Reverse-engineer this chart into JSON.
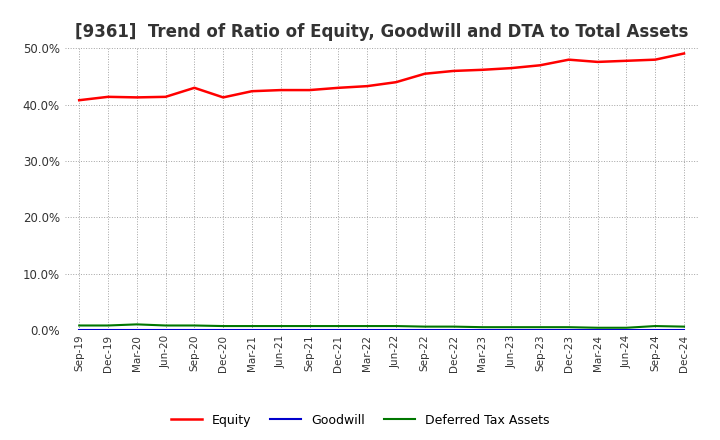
{
  "title": "[9361]  Trend of Ratio of Equity, Goodwill and DTA to Total Assets",
  "x_labels": [
    "Sep-19",
    "Dec-19",
    "Mar-20",
    "Jun-20",
    "Sep-20",
    "Dec-20",
    "Mar-21",
    "Jun-21",
    "Sep-21",
    "Dec-21",
    "Mar-22",
    "Jun-22",
    "Sep-22",
    "Dec-22",
    "Mar-23",
    "Jun-23",
    "Sep-23",
    "Dec-23",
    "Mar-24",
    "Jun-24",
    "Sep-24",
    "Dec-24"
  ],
  "equity": [
    0.408,
    0.414,
    0.413,
    0.414,
    0.43,
    0.413,
    0.424,
    0.426,
    0.426,
    0.43,
    0.433,
    0.44,
    0.455,
    0.46,
    0.462,
    0.465,
    0.47,
    0.48,
    0.476,
    0.478,
    0.48,
    0.491
  ],
  "goodwill": [
    0.0,
    0.0,
    0.0,
    0.0,
    0.0,
    0.0,
    0.0,
    0.0,
    0.0,
    0.0,
    0.0,
    0.0,
    0.0,
    0.0,
    0.0,
    0.0,
    0.0,
    0.0,
    0.0,
    0.0,
    0.0,
    0.0
  ],
  "dta": [
    0.008,
    0.008,
    0.01,
    0.008,
    0.008,
    0.007,
    0.007,
    0.007,
    0.007,
    0.007,
    0.007,
    0.007,
    0.006,
    0.006,
    0.005,
    0.005,
    0.005,
    0.005,
    0.004,
    0.004,
    0.007,
    0.006
  ],
  "equity_color": "#ff0000",
  "goodwill_color": "#0000cc",
  "dta_color": "#007700",
  "ylim": [
    0.0,
    0.5
  ],
  "yticks": [
    0.0,
    0.1,
    0.2,
    0.3,
    0.4,
    0.5
  ],
  "background_color": "#ffffff",
  "plot_bg_color": "#ffffff",
  "grid_color": "#999999",
  "title_fontsize": 12,
  "title_color": "#333333",
  "legend_labels": [
    "Equity",
    "Goodwill",
    "Deferred Tax Assets"
  ]
}
